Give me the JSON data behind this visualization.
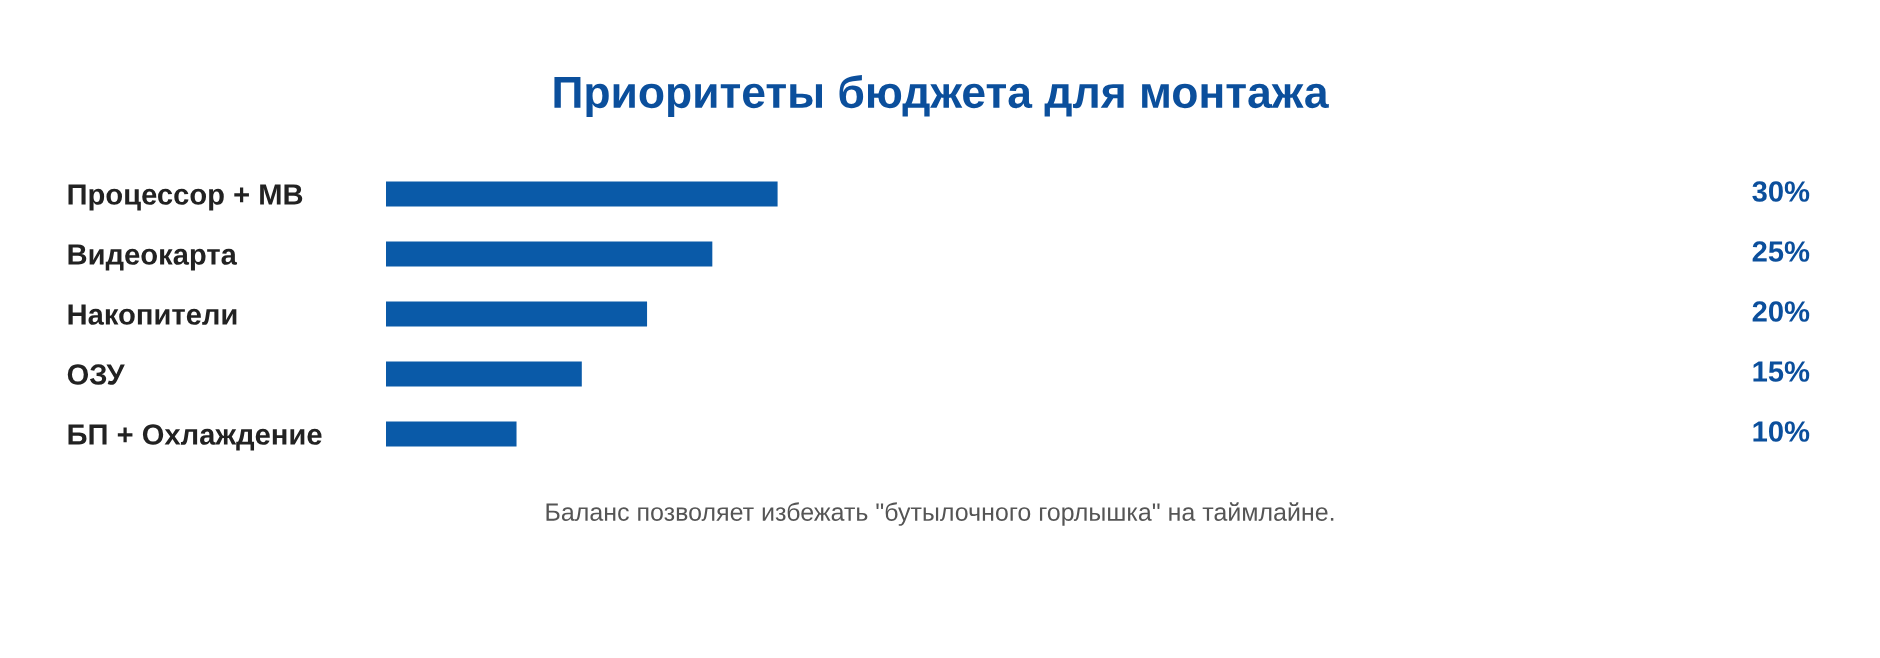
{
  "chart_data": {
    "type": "bar",
    "orientation": "horizontal",
    "title": "Приоритеты бюджета для монтажа",
    "categories": [
      "Процессор + MB",
      "Видеокарта",
      "Накопители",
      "ОЗУ",
      "БП + Охлаждение"
    ],
    "values": [
      30,
      25,
      20,
      15,
      10
    ],
    "color": "#0a5aa8",
    "value_labels": [
      "30%",
      "25%",
      "20%",
      "15%",
      "10%"
    ],
    "tick_labels": "y",
    "grid": false,
    "legend": false,
    "annotations": [
      "Баланс позволяет избежать \"бутылочного горлышка\" на таймлайне."
    ]
  }
}
